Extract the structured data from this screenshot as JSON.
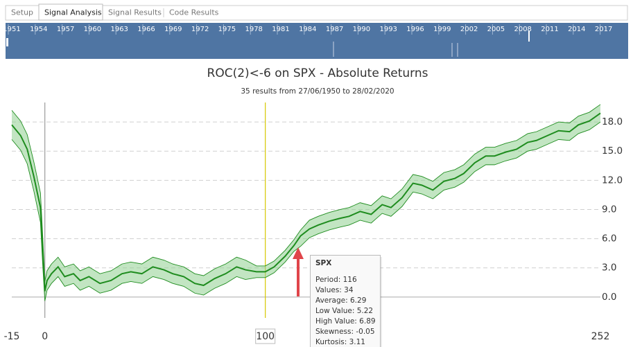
{
  "tabs": [
    "Setup",
    "Signal Analysis",
    "Signal Results",
    "Code Results"
  ],
  "active_tab": 1,
  "timeline": {
    "years": [
      "1951",
      "1954",
      "1957",
      "1960",
      "1963",
      "1966",
      "1969",
      "1972",
      "1975",
      "1978",
      "1981",
      "1984",
      "1987",
      "1990",
      "1993",
      "1996",
      "1999",
      "2002",
      "2005",
      "2008",
      "2011",
      "2014",
      "2017"
    ]
  },
  "chart_data": {
    "type": "band-line",
    "title": "ROC(2)<-6 on SPX - Absolute Returns",
    "subtitle": "35 results from 27/06/1950 to 28/02/2020",
    "x": [
      -15,
      -11,
      -8,
      -5,
      -2,
      -1,
      0,
      1,
      3,
      6,
      9,
      13,
      16,
      20,
      25,
      30,
      35,
      39,
      44,
      49,
      54,
      58,
      63,
      68,
      72,
      77,
      82,
      87,
      91,
      96,
      100,
      104,
      109,
      113,
      116,
      120,
      124,
      129,
      134,
      138,
      143,
      148,
      153,
      157,
      162,
      167,
      171,
      176,
      181,
      186,
      190,
      195,
      200,
      204,
      209,
      214,
      219,
      223,
      228,
      233,
      238,
      242,
      247,
      252
    ],
    "values": [
      17.7,
      16.6,
      15.2,
      12.4,
      9.2,
      4.9,
      0.6,
      1.7,
      2.4,
      3.1,
      2.1,
      2.4,
      1.7,
      2.1,
      1.4,
      1.7,
      2.4,
      2.6,
      2.4,
      3.1,
      2.8,
      2.4,
      2.1,
      1.4,
      1.2,
      1.9,
      2.4,
      3.1,
      2.8,
      2.6,
      2.6,
      3.1,
      4.2,
      5.3,
      6.29,
      7.0,
      7.4,
      7.8,
      8.1,
      8.3,
      8.8,
      8.5,
      9.5,
      9.2,
      10.2,
      11.7,
      11.5,
      11.0,
      11.9,
      12.2,
      12.7,
      13.8,
      14.5,
      14.5,
      14.9,
      15.2,
      15.9,
      16.1,
      16.6,
      17.1,
      17.0,
      17.7,
      18.1,
      18.9
    ],
    "low": [
      16.2,
      15.1,
      13.7,
      10.9,
      7.7,
      3.4,
      -0.4,
      0.7,
      1.4,
      2.1,
      1.1,
      1.4,
      0.7,
      1.1,
      0.4,
      0.7,
      1.4,
      1.6,
      1.4,
      2.1,
      1.8,
      1.4,
      1.1,
      0.4,
      0.2,
      0.9,
      1.4,
      2.1,
      1.8,
      2.0,
      2.0,
      2.5,
      3.6,
      4.7,
      5.22,
      6.1,
      6.5,
      6.9,
      7.2,
      7.4,
      7.9,
      7.6,
      8.6,
      8.3,
      9.3,
      10.8,
      10.6,
      10.1,
      11.0,
      11.3,
      11.8,
      12.9,
      13.6,
      13.6,
      14.0,
      14.3,
      15.0,
      15.2,
      15.7,
      16.2,
      16.1,
      16.8,
      17.2,
      18.0
    ],
    "high": [
      19.2,
      18.1,
      16.7,
      13.9,
      10.7,
      6.4,
      1.6,
      2.7,
      3.4,
      4.1,
      3.1,
      3.4,
      2.7,
      3.1,
      2.4,
      2.7,
      3.4,
      3.6,
      3.4,
      4.1,
      3.8,
      3.4,
      3.1,
      2.4,
      2.2,
      2.9,
      3.4,
      4.1,
      3.8,
      3.2,
      3.2,
      3.7,
      4.8,
      5.9,
      6.89,
      7.9,
      8.3,
      8.7,
      9.0,
      9.2,
      9.7,
      9.4,
      10.4,
      10.1,
      11.1,
      12.6,
      12.4,
      11.9,
      12.8,
      13.1,
      13.6,
      14.7,
      15.4,
      15.4,
      15.8,
      16.1,
      16.8,
      17.0,
      17.5,
      18.0,
      17.9,
      18.6,
      19.0,
      19.8
    ],
    "color": "#1e8c1e",
    "band_color": "#8fd08f",
    "xlim": [
      -15,
      252
    ],
    "xticks": [
      -15,
      0,
      100,
      252
    ],
    "highlight_xtick": 2,
    "ylim": [
      -3,
      20
    ],
    "yticks": [
      {
        "value": 0,
        "label": "0.0"
      },
      {
        "value": 3,
        "label": "3.0"
      },
      {
        "value": 6,
        "label": "6.0"
      },
      {
        "value": 9,
        "label": "9.0"
      },
      {
        "value": 12,
        "label": "12.0"
      },
      {
        "value": 15,
        "label": "15.0"
      },
      {
        "value": 18,
        "label": "18.0"
      }
    ],
    "grid": true,
    "reference_lines": [
      {
        "x": 0,
        "color": "#9a9a9a"
      },
      {
        "x": 100,
        "color": "#d6c800"
      }
    ],
    "tooltip": {
      "title": "SPX",
      "lines": [
        "Period: 116",
        "Values: 34",
        "Average: 6.29",
        "Low Value: 5.22",
        "High Value: 6.89",
        "Skewness: -0.05",
        "Kurtosis: 3.11"
      ]
    }
  }
}
